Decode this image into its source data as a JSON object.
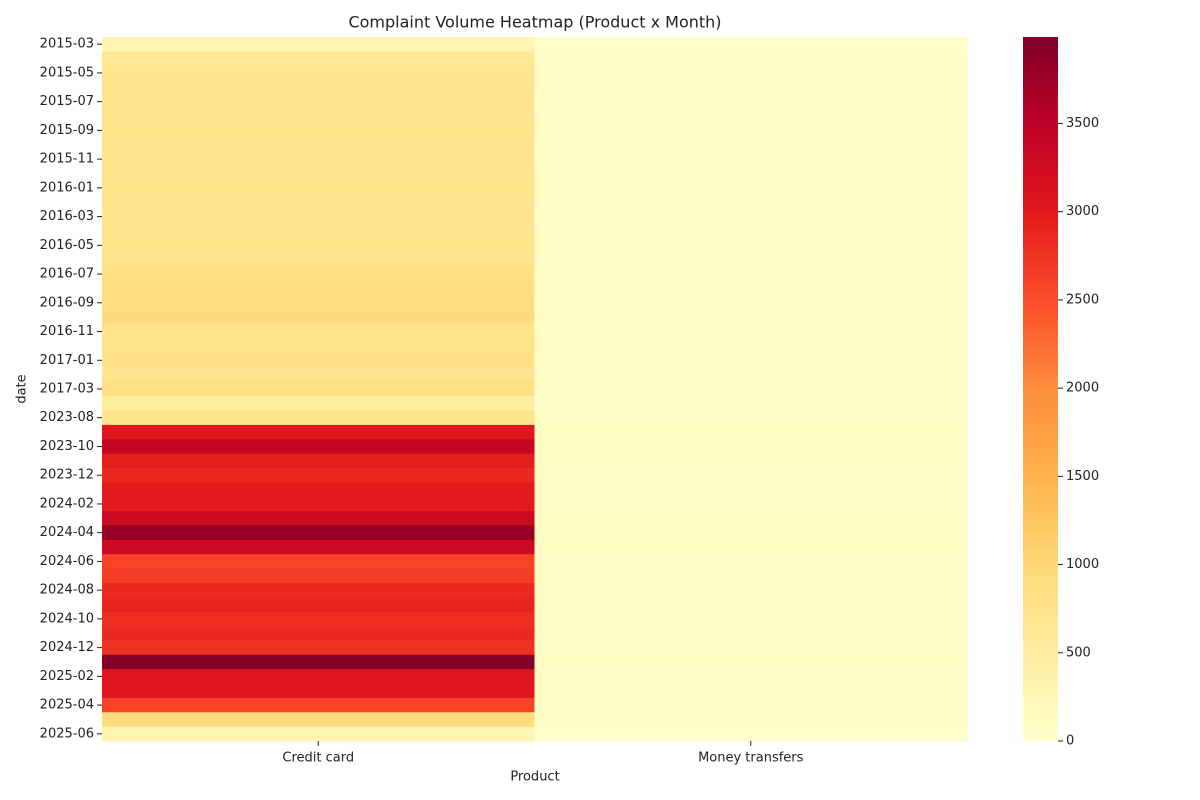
{
  "chart_data": {
    "type": "heatmap",
    "title": "Complaint Volume Heatmap (Product x Month)",
    "x_label": "Product",
    "y_label": "date",
    "categories": [
      "2015-03",
      null,
      "2015-05",
      null,
      "2015-07",
      null,
      "2015-09",
      null,
      "2015-11",
      null,
      "2016-01",
      null,
      "2016-03",
      null,
      "2016-05",
      null,
      "2016-07",
      null,
      "2016-09",
      null,
      "2016-11",
      null,
      "2017-01",
      null,
      "2017-03",
      null,
      "2023-08",
      null,
      "2023-10",
      null,
      "2023-12",
      null,
      "2024-02",
      null,
      "2024-04",
      null,
      "2024-06",
      null,
      "2024-08",
      null,
      "2024-10",
      null,
      "2024-12",
      null,
      "2025-02",
      null,
      "2025-04",
      null,
      "2025-06"
    ],
    "series": [
      {
        "name": "Credit card",
        "values": [
          300,
          650,
          720,
          740,
          730,
          740,
          750,
          740,
          730,
          740,
          750,
          740,
          730,
          740,
          750,
          740,
          820,
          880,
          900,
          920,
          750,
          780,
          800,
          720,
          850,
          500,
          750,
          3050,
          3400,
          2950,
          2850,
          3000,
          3000,
          3300,
          3800,
          3300,
          2600,
          2650,
          2850,
          2900,
          2800,
          2850,
          2750,
          3950,
          3050,
          3050,
          2600,
          900,
          300
        ]
      },
      {
        "name": "Money transfers",
        "values": [
          40,
          60,
          70,
          70,
          60,
          70,
          70,
          60,
          60,
          70,
          70,
          70,
          60,
          70,
          70,
          70,
          80,
          80,
          80,
          80,
          70,
          70,
          80,
          70,
          80,
          60,
          70,
          90,
          90,
          90,
          80,
          80,
          80,
          90,
          90,
          90,
          80,
          80,
          80,
          80,
          80,
          80,
          80,
          90,
          80,
          80,
          80,
          70,
          50
        ]
      }
    ],
    "colormap": "YlOrRd",
    "clim": [
      0,
      3990
    ],
    "cticks": [
      0,
      500,
      1000,
      1500,
      2000,
      2500,
      3000,
      3500
    ]
  }
}
